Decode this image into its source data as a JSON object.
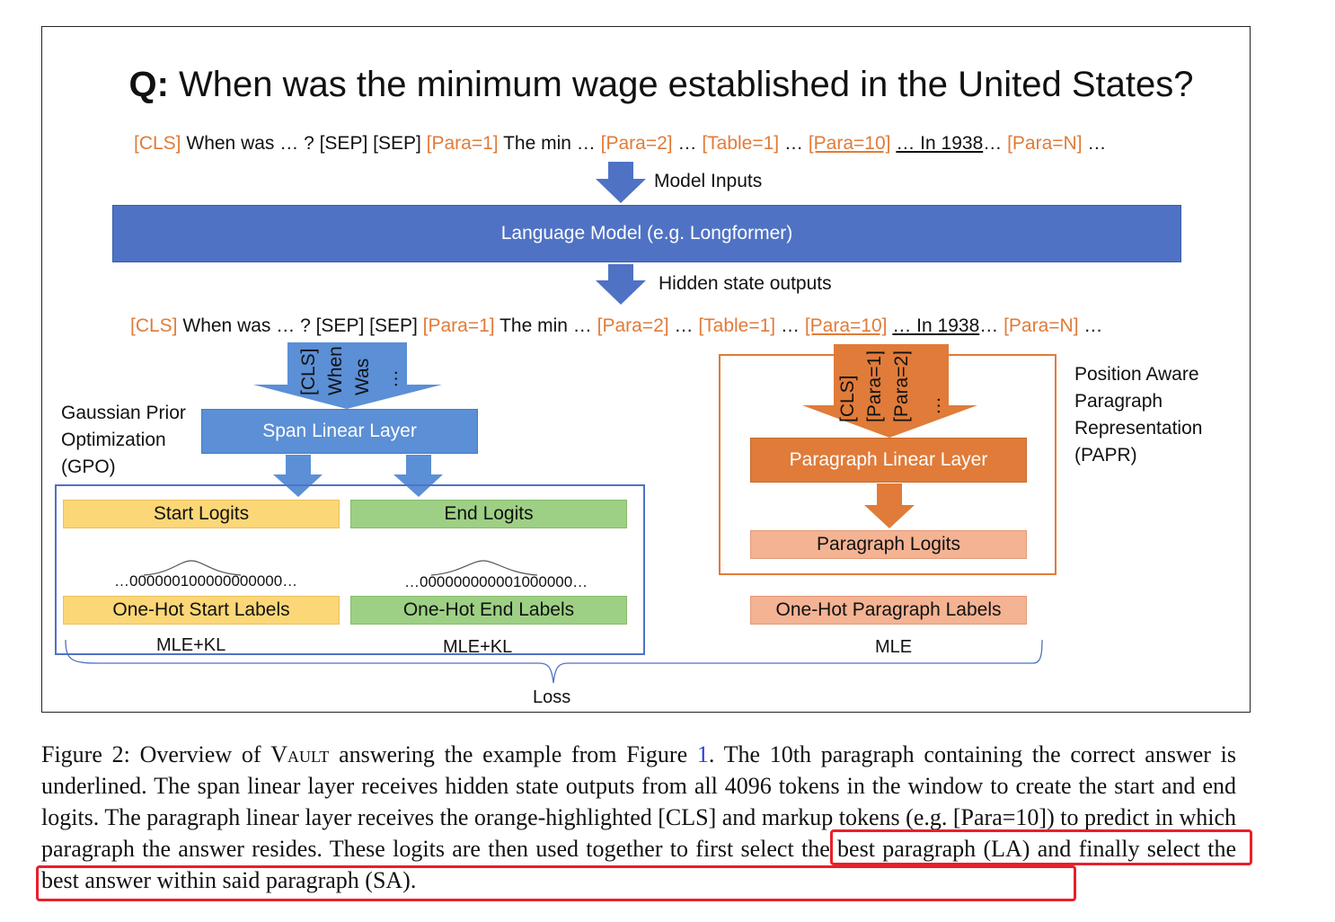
{
  "question": {
    "prefix": "Q:",
    "text": "When was the minimum wage established in the United States?"
  },
  "tokens": {
    "cls": "[CLS]",
    "when_was": "When was … ? [SEP] [SEP]",
    "para1": "[Para=1]",
    "the_min": "The min …",
    "para2": "[Para=2]",
    "dots1": "…",
    "table1": "[Table=1]",
    "dots2": "…",
    "para10": "[Para=10]",
    "in1938": "… In 1938",
    "dots3": "…",
    "paraN": "[Para=N]",
    "dots4": "…"
  },
  "labels": {
    "model_inputs": "Model Inputs",
    "language_model": "Language Model (e.g. Longformer)",
    "hidden_state_outputs": "Hidden state outputs",
    "gpo": [
      "Gaussian Prior",
      "Optimization",
      "(GPO)"
    ],
    "papr": [
      "Position Aware",
      "Paragraph",
      "Representation",
      "(PAPR)"
    ],
    "span_linear_layer": "Span Linear Layer",
    "paragraph_linear_layer": "Paragraph Linear Layer",
    "start_logits": "Start Logits",
    "end_logits": "End Logits",
    "paragraph_logits": "Paragraph Logits",
    "start_seq": "…000000100000000000…",
    "end_seq": "…000000000001000000…",
    "one_hot_start": "One-Hot Start Labels",
    "one_hot_end": "One-Hot End Labels",
    "one_hot_para": "One-Hot Paragraph Labels",
    "mle_kl_1": "MLE+KL",
    "mle_kl_2": "MLE+KL",
    "mle": "MLE",
    "loss": "Loss"
  },
  "span_arrow_tokens": [
    "[CLS]",
    "When",
    "Was",
    "…"
  ],
  "para_arrow_tokens": [
    "[CLS]",
    "[Para=1]",
    "[Para=2]",
    "…"
  ],
  "caption": {
    "lead": "Figure 2: Overview of ",
    "system": "Vault",
    "mid1": " answering the example from Figure ",
    "figref": "1",
    "rest": ". The 10th paragraph containing the correct answer is underlined. The span linear layer receives hidden state outputs from all 4096 tokens in the window to create the start and end logits. The paragraph linear layer receives the orange-highlighted [CLS] and markup tokens (e.g. [Para=10]) to predict in which paragraph the answer resides. These logits are then used together to first select the best paragraph (LA) and finally select the best answer within said paragraph (SA)."
  },
  "colors": {
    "orange": "#e07b39",
    "blue_dark": "#4f72c4",
    "blue_light": "#5b8fd6",
    "yellow": "#fcd777",
    "green": "#9dd084",
    "salmon": "#f4b393",
    "highlight_red": "#e8202a"
  }
}
